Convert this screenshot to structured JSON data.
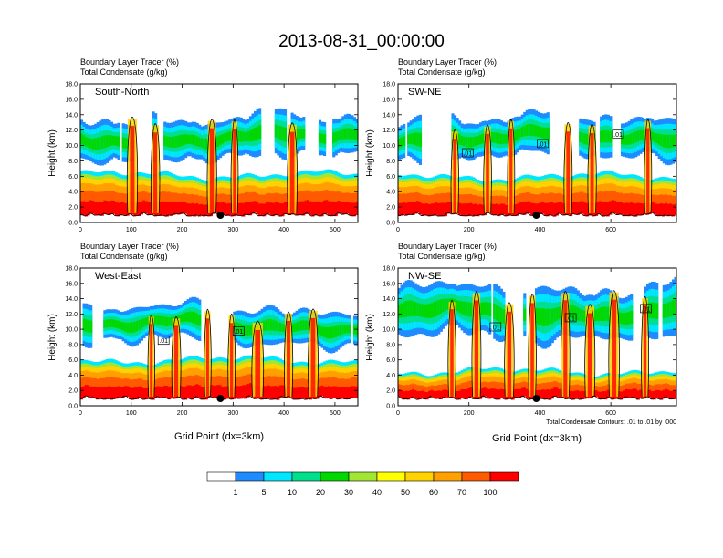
{
  "figure": {
    "title": "2013-08-31_00:00:00",
    "contour_note": "Total Condensate Contours: .01 to .01 by .000"
  },
  "colors": {
    "levels": [
      "#ffffff",
      "#1e8cff",
      "#00e6ff",
      "#00e08c",
      "#00d800",
      "#a0e632",
      "#ffff00",
      "#ffd200",
      "#ffa000",
      "#ff5a00",
      "#ff0000"
    ],
    "contour": "#000000"
  },
  "colorbar": {
    "labels": [
      "1",
      "5",
      "10",
      "20",
      "30",
      "40",
      "50",
      "60",
      "70",
      "100"
    ]
  },
  "chart_data": [
    {
      "type": "heatmap",
      "panel": "South-North",
      "subtitle1": "Boundary Layer Tracer   (%)",
      "subtitle2": "Total Condensate   (g/kg)",
      "ylabel": "Height (km)",
      "xlabel": "",
      "xlim": [
        0,
        545
      ],
      "ylim": [
        0,
        18
      ],
      "xticks": [
        0,
        100,
        200,
        300,
        400,
        500
      ],
      "yticks": [
        "0.0",
        "2.0",
        "4.0",
        "6.0",
        "8.0",
        "10.0",
        "12.0",
        "14.0",
        "16.0",
        "18.0"
      ],
      "marker_x": 275,
      "pbl_top_km": 6.2,
      "cloud_layer_km": [
        7.5,
        14.5
      ],
      "contour_labels": []
    },
    {
      "type": "heatmap",
      "panel": "SW-NE",
      "subtitle1": "Boundary Layer Tracer   (%)",
      "subtitle2": "Total Condensate   (g/kg)",
      "ylabel": "Height (km)",
      "xlabel": "",
      "xlim": [
        0,
        785
      ],
      "ylim": [
        0,
        18
      ],
      "xticks": [
        0,
        200,
        400,
        600
      ],
      "yticks": [
        "0.0",
        "2.0",
        "4.0",
        "6.0",
        "8.0",
        "10.0",
        "12.0",
        "14.0",
        "16.0",
        "18.0"
      ],
      "marker_x": 390,
      "pbl_top_km": 6.0,
      "cloud_layer_km": [
        7.5,
        14.5
      ],
      "contour_labels": [
        ".01",
        ".01",
        ".01"
      ]
    },
    {
      "type": "heatmap",
      "panel": "West-East",
      "subtitle1": "Boundary Layer Tracer   (%)",
      "subtitle2": "Total Condensate   (g/kg)",
      "ylabel": "Height (km)",
      "xlabel": "Grid Point (dx=3km)",
      "xlim": [
        0,
        545
      ],
      "ylim": [
        0,
        18
      ],
      "xticks": [
        0,
        100,
        200,
        300,
        400,
        500
      ],
      "yticks": [
        "0.0",
        "2.0",
        "4.0",
        "6.0",
        "8.0",
        "10.0",
        "12.0",
        "14.0",
        "16.0",
        "18.0"
      ],
      "marker_x": 275,
      "pbl_top_km": 6.0,
      "cloud_layer_km": [
        7.5,
        13.5
      ],
      "contour_labels": [
        ".01",
        ".01"
      ]
    },
    {
      "type": "heatmap",
      "panel": "NW-SE",
      "subtitle1": "Boundary Layer Tracer   (%)",
      "subtitle2": "Total Condensate   (g/kg)",
      "ylabel": "Height (km)",
      "xlabel": "Grid Point (dx=3km)",
      "xlim": [
        0,
        785
      ],
      "ylim": [
        0,
        18
      ],
      "xticks": [
        0,
        200,
        400,
        600
      ],
      "yticks": [
        "0.0",
        "2.0",
        "4.0",
        "6.0",
        "8.0",
        "10.0",
        "12.0",
        "14.0",
        "16.0",
        "18.0"
      ],
      "marker_x": 390,
      "pbl_top_km": 4.5,
      "cloud_layer_km": [
        8.0,
        16.5
      ],
      "contour_labels": [
        ".01",
        ".01",
        ".01"
      ]
    }
  ]
}
